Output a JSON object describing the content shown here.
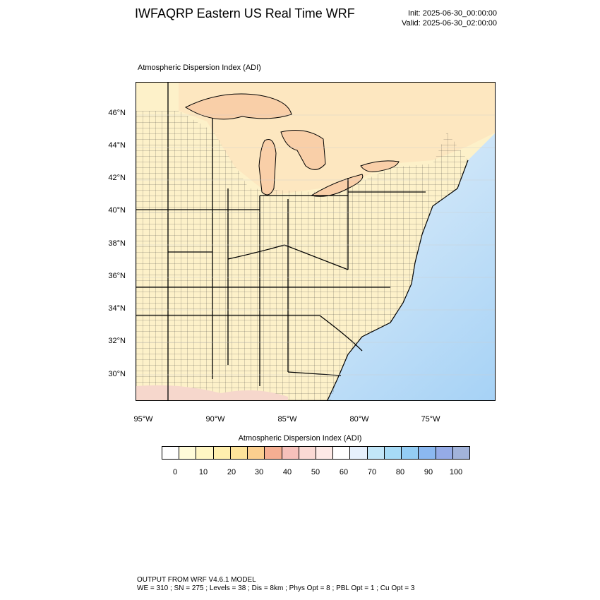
{
  "header": {
    "title": "IWFAQRP Eastern US Real Time WRF",
    "init": "Init: 2025-06-30_00:00:00",
    "valid": "Valid: 2025-06-30_02:00:00"
  },
  "plot": {
    "label": "Atmospheric Dispersion Index   (ADI)",
    "lat_labels": [
      "46°N",
      "44°N",
      "42°N",
      "40°N",
      "38°N",
      "36°N",
      "34°N",
      "32°N",
      "30°N"
    ],
    "lon_labels": [
      "95°W",
      "90°W",
      "85°W",
      "80°W",
      "75°W"
    ]
  },
  "colorbar": {
    "title": "Atmospheric Dispersion Index  (ADI)",
    "labels": [
      "0",
      "10",
      "20",
      "30",
      "40",
      "50",
      "60",
      "70",
      "80",
      "90",
      "100"
    ],
    "colors": [
      "#ffffff",
      "#fffbd9",
      "#fff6c4",
      "#ffefae",
      "#fde39a",
      "#fbcf8f",
      "#f5ae92",
      "#f6c1bb",
      "#fad9d4",
      "#fde9e6",
      "#ffffff",
      "#e6f0fc",
      "#c2e6f8",
      "#a7dbf6",
      "#94cdf4",
      "#8bb8f0",
      "#95abe6",
      "#a2b3da"
    ]
  },
  "colors": {
    "land_base": "#fdf1c9",
    "lake": "#f9d0a6",
    "ocean_near": "#fcd9c8",
    "ocean_far": "#b7dcf7",
    "ocean_deep": "#a6d2f6"
  },
  "footer": {
    "line1": "OUTPUT FROM WRF V4.6.1 MODEL",
    "line2": "WE = 310 ; SN = 275 ; Levels = 38 ; Dis = 8km ; Phys Opt = 8 ; PBL Opt = 1 ; Cu Opt = 3"
  }
}
